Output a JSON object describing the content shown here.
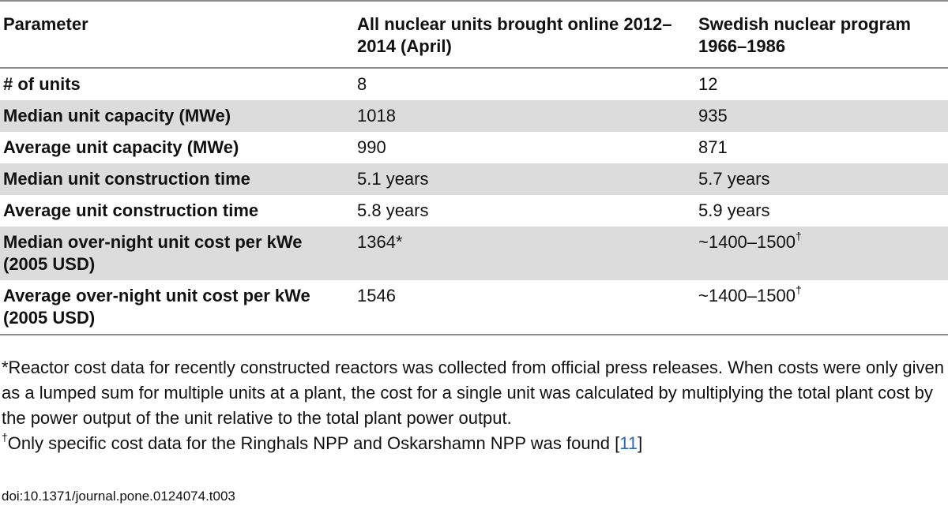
{
  "table": {
    "headers": [
      "Parameter",
      "All nuclear units brought online 2012–2014 (April)",
      "Swedish nuclear program 1966–1986"
    ],
    "rows": [
      {
        "param": "# of units",
        "recent": "8",
        "swedish": "12"
      },
      {
        "param": "Median unit capacity (MWe)",
        "recent": "1018",
        "swedish": "935"
      },
      {
        "param": "Average unit capacity (MWe)",
        "recent": "990",
        "swedish": "871"
      },
      {
        "param": "Median unit construction time",
        "recent": "5.1 years",
        "swedish": "5.7 years"
      },
      {
        "param": "Average unit construction time",
        "recent": "5.8 years",
        "swedish": "5.9 years"
      },
      {
        "param": "Median over-night unit cost per kWe (2005 USD)",
        "recent": "1364*",
        "swedish": "~1400–1500",
        "swedish_mark": "†"
      },
      {
        "param": "Average over-night unit cost per kWe (2005 USD)",
        "recent": "1546",
        "swedish": "~1400–1500",
        "swedish_mark": "†"
      }
    ]
  },
  "footnotes": {
    "asterisk": "*Reactor cost data for recently constructed reactors was collected from official press releases. When costs were only given as a lumped sum for multiple units at a plant, the cost for a single unit was calculated by multiplying the total plant cost by the power output of the unit relative to the total plant power output.",
    "dagger_mark": "†",
    "dagger_text": "Only specific cost data for the Ringhals NPP and Oskarshamn NPP was found [",
    "dagger_ref": "11",
    "dagger_close": "]"
  },
  "doi": "doi:10.1371/journal.pone.0124074.t003",
  "colors": {
    "row_shade": "#dcdcdc",
    "rule": "#8c8c8c",
    "link": "#2b6cb0"
  }
}
